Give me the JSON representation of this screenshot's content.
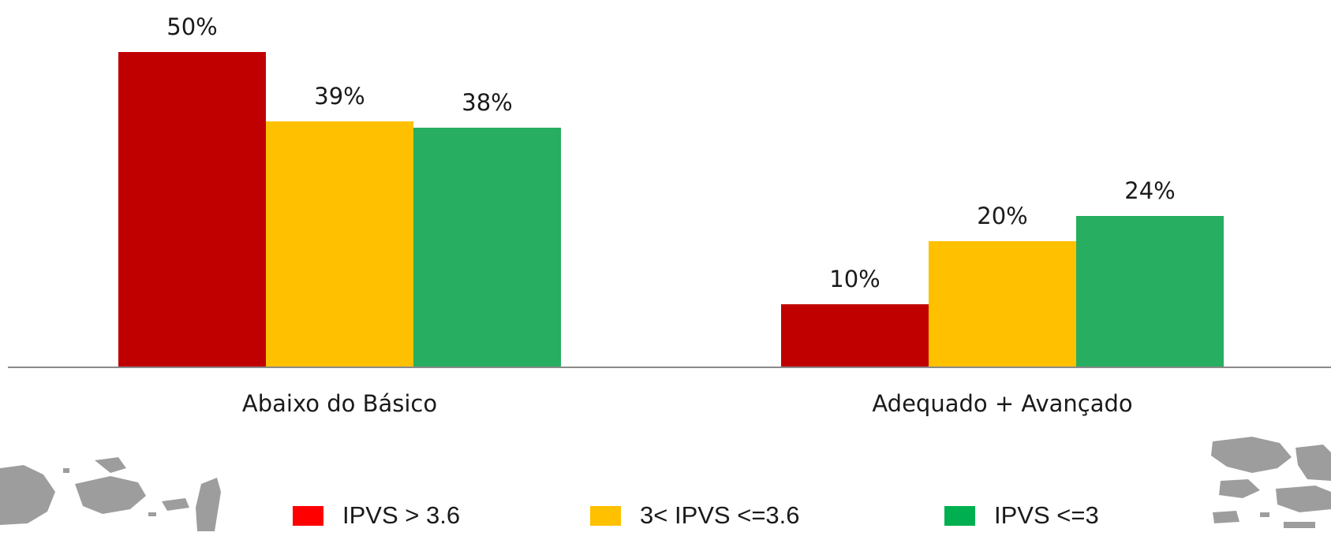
{
  "chart_data": {
    "type": "bar",
    "title": "",
    "xlabel": "",
    "ylabel": "",
    "ylim": [
      0,
      55
    ],
    "grid": false,
    "legend_position": "bottom",
    "categories": [
      "Abaixo do Básico",
      "Adequado + Avançado"
    ],
    "series": [
      {
        "name": "IPVS > 3.6",
        "color": "#c00000",
        "legend_color": "#ff0000",
        "values": [
          50,
          10
        ],
        "labels": [
          "50%",
          "10%"
        ]
      },
      {
        "name": "3< IPVS <=3.6",
        "color": "#ffc000",
        "legend_color": "#ffc000",
        "values": [
          39,
          20
        ],
        "labels": [
          "39%",
          "20%"
        ]
      },
      {
        "name": "IPVS <=3",
        "color": "#27ae60",
        "legend_color": "#00b050",
        "values": [
          38,
          24
        ],
        "labels": [
          "38%",
          "24%"
        ]
      }
    ]
  },
  "decor": {
    "map_icon": "world-map-fragment",
    "map_color": "#8c8c8c"
  }
}
